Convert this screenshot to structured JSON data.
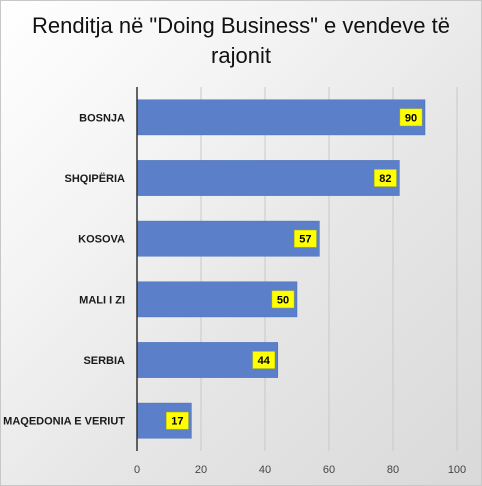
{
  "chart_data": {
    "type": "bar",
    "orientation": "horizontal",
    "title": "Renditja në \"Doing Business\" e vendeve të rajonit",
    "categories": [
      "BOSNJA",
      "SHQIPËRIA",
      "KOSOVA",
      "MALI I ZI",
      "SERBIA",
      "MAQEDONIA E VERIUT"
    ],
    "values": [
      90,
      82,
      57,
      50,
      44,
      17
    ],
    "xlim": [
      0,
      100
    ],
    "xticks": [
      "0",
      "20",
      "40",
      "60",
      "80",
      "100"
    ],
    "grid": true,
    "colors": {
      "bar": "#5b7fc9",
      "bar_edge": "#4a6fb8",
      "label_bg": "#ffff00",
      "gridline": "#c9c9c9",
      "axis": "#333333"
    }
  }
}
